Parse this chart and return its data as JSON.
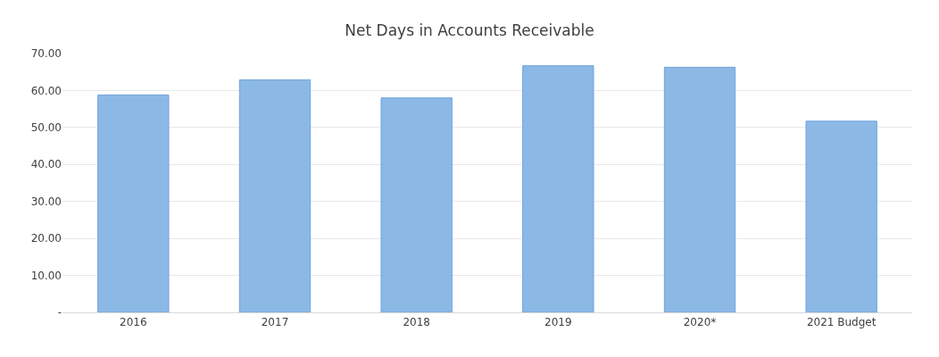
{
  "chart_data": {
    "type": "bar",
    "title": "Net Days in Accounts Receivable",
    "categories": [
      "2016",
      "2017",
      "2018",
      "2019",
      "2020*",
      "2021 Budget"
    ],
    "values": [
      58.8,
      62.9,
      58.0,
      66.7,
      66.3,
      51.7
    ],
    "color": "#8cb8e6",
    "ylim": [
      0,
      70
    ],
    "yticks": [
      {
        "value": 0,
        "label": "-"
      },
      {
        "value": 10,
        "label": "10.00"
      },
      {
        "value": 20,
        "label": "20.00"
      },
      {
        "value": 30,
        "label": "30.00"
      },
      {
        "value": 40,
        "label": "40.00"
      },
      {
        "value": 50,
        "label": "50.00"
      },
      {
        "value": 60,
        "label": "60.00"
      },
      {
        "value": 70,
        "label": "70.00"
      }
    ],
    "grid": "y"
  }
}
